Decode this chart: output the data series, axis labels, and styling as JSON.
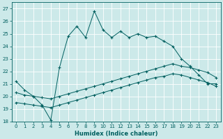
{
  "xlabel": "Humidex (Indice chaleur)",
  "ylabel": "",
  "xlim": [
    -0.5,
    23.5
  ],
  "ylim": [
    18,
    27.5
  ],
  "yticks": [
    18,
    19,
    20,
    21,
    22,
    23,
    24,
    25,
    26,
    27
  ],
  "xticks": [
    0,
    1,
    2,
    3,
    4,
    5,
    6,
    7,
    8,
    9,
    10,
    11,
    12,
    13,
    14,
    15,
    16,
    17,
    18,
    19,
    20,
    21,
    22,
    23
  ],
  "bg_color": "#cce9e9",
  "line_color": "#005f5f",
  "grid_color": "#b0d4d4",
  "line1_x": [
    0,
    1,
    2,
    3,
    4,
    5,
    6,
    7,
    8,
    9,
    10,
    11,
    12,
    13,
    14,
    15,
    16,
    17,
    18,
    19,
    20,
    21,
    22,
    23
  ],
  "line1_y": [
    21.2,
    20.5,
    20.0,
    19.3,
    18.1,
    22.3,
    24.8,
    25.6,
    24.7,
    26.8,
    25.3,
    24.7,
    25.2,
    24.7,
    25.0,
    24.7,
    24.8,
    24.4,
    24.0,
    23.0,
    22.4,
    21.7,
    21.0,
    21.0
  ],
  "line2_x": [
    0,
    1,
    2,
    3,
    4,
    5,
    6,
    7,
    8,
    9,
    10,
    11,
    12,
    13,
    14,
    15,
    16,
    17,
    18,
    19,
    20,
    21,
    22,
    23
  ],
  "line2_y": [
    20.3,
    20.1,
    20.0,
    19.9,
    19.8,
    20.0,
    20.2,
    20.4,
    20.6,
    20.8,
    21.0,
    21.2,
    21.4,
    21.6,
    21.8,
    22.0,
    22.2,
    22.4,
    22.6,
    22.4,
    22.3,
    22.1,
    21.9,
    21.5
  ],
  "line3_x": [
    0,
    1,
    2,
    3,
    4,
    5,
    6,
    7,
    8,
    9,
    10,
    11,
    12,
    13,
    14,
    15,
    16,
    17,
    18,
    19,
    20,
    21,
    22,
    23
  ],
  "line3_y": [
    19.5,
    19.4,
    19.3,
    19.2,
    19.1,
    19.3,
    19.5,
    19.7,
    19.9,
    20.1,
    20.3,
    20.5,
    20.7,
    20.9,
    21.1,
    21.3,
    21.5,
    21.6,
    21.8,
    21.7,
    21.5,
    21.3,
    21.1,
    20.8
  ]
}
